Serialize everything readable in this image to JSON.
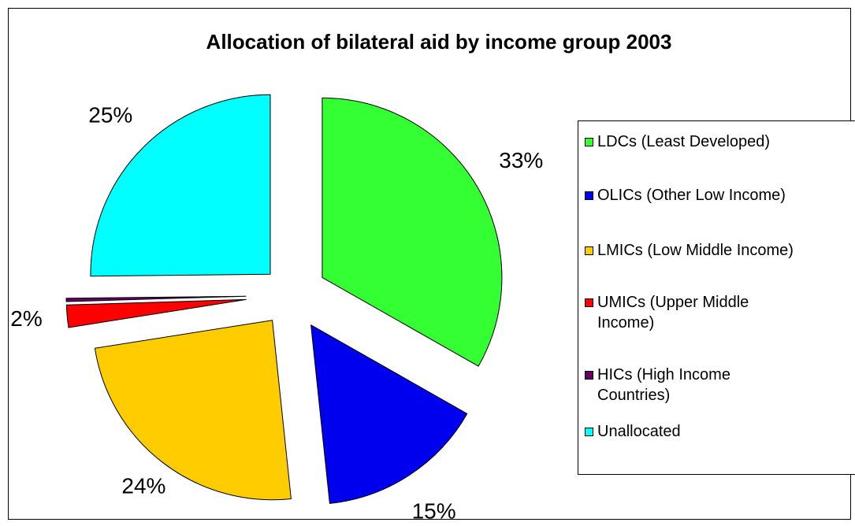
{
  "chart_data": {
    "type": "pie",
    "title": "Allocation of bilateral aid by income group 2003",
    "exploded": true,
    "start_angle_deg": 0,
    "direction": "clockwise",
    "slices": [
      {
        "name": "LDCs (Least Developed)",
        "value": 33,
        "label": "33%",
        "color": "#33ff33"
      },
      {
        "name": "OLICs (Other Low Income)",
        "value": 15,
        "label": "15%",
        "color": "#0000ee"
      },
      {
        "name": "LMICs (Low Middle Income)",
        "value": 24,
        "label": "24%",
        "color": "#ffcc00"
      },
      {
        "name": "UMICs (Upper Middle Income)",
        "value": 2,
        "label": "2%",
        "color": "#ff0000"
      },
      {
        "name": "HICs (High Income Countries)",
        "value": 0.3,
        "label": "",
        "color": "#660066"
      },
      {
        "name": "Unallocated",
        "value": 25,
        "label": "25%",
        "color": "#00ffff"
      }
    ],
    "legend": {
      "placement": "right",
      "entries": [
        {
          "text": "LDCs (Least Developed)",
          "color": "#33ff33"
        },
        {
          "text": "OLICs (Other Low Income)",
          "color": "#0000ee"
        },
        {
          "text": "LMICs (Low Middle Income)",
          "color": "#ffcc00"
        },
        {
          "text": "UMICs (Upper Middle\nIncome)",
          "color": "#ff0000"
        },
        {
          "text": "HICs (High Income\nCountries)",
          "color": "#660066"
        },
        {
          "text": "Unallocated",
          "color": "#00ffff"
        }
      ]
    }
  }
}
